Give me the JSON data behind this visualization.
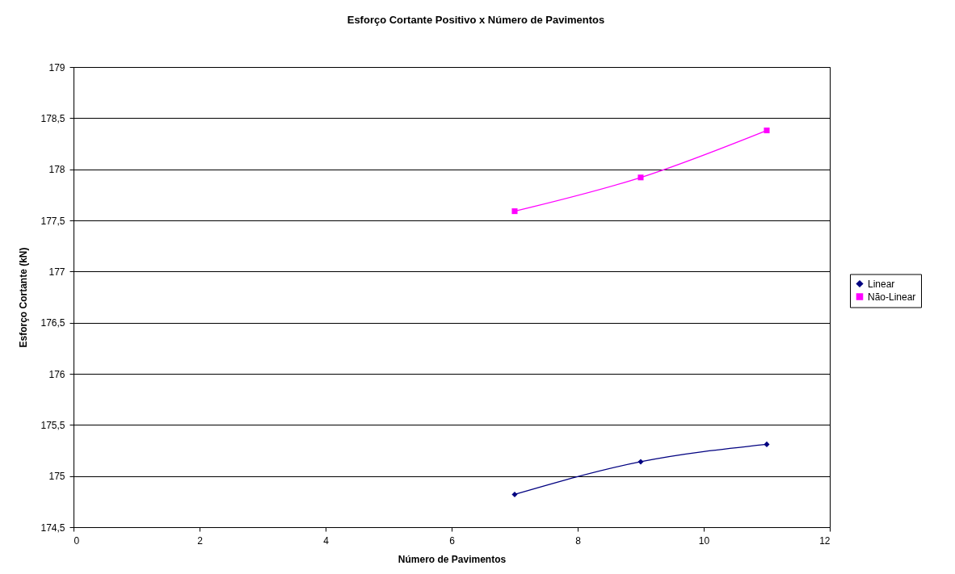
{
  "chart_data": {
    "type": "line",
    "title": "Esforço Cortante Positivo x Número de Pavimentos",
    "xlabel": "Número de Pavimentos",
    "ylabel": "Esforço Cortante (kN)",
    "x": [
      7,
      9,
      11
    ],
    "series": [
      {
        "name": "Linear",
        "color": "#000080",
        "marker": "diamond",
        "values": [
          174.82,
          175.14,
          175.31
        ]
      },
      {
        "name": "Não-Linear",
        "color": "#ff00ff",
        "marker": "square",
        "values": [
          177.59,
          177.92,
          178.38
        ]
      }
    ],
    "xlim": [
      0,
      12
    ],
    "xticks": [
      0,
      2,
      4,
      6,
      8,
      10,
      12
    ],
    "ylim": [
      174.5,
      179
    ],
    "yticks": [
      {
        "value": 174.5,
        "label": "174,5"
      },
      175,
      {
        "value": 175.5,
        "label": "175,5"
      },
      176,
      {
        "value": 176.5,
        "label": "176,5"
      },
      177,
      {
        "value": 177.5,
        "label": "177,5"
      },
      178,
      {
        "value": 178.5,
        "label": "178,5"
      },
      179
    ],
    "grid": "y",
    "legend": "right",
    "line_style": "solid"
  }
}
